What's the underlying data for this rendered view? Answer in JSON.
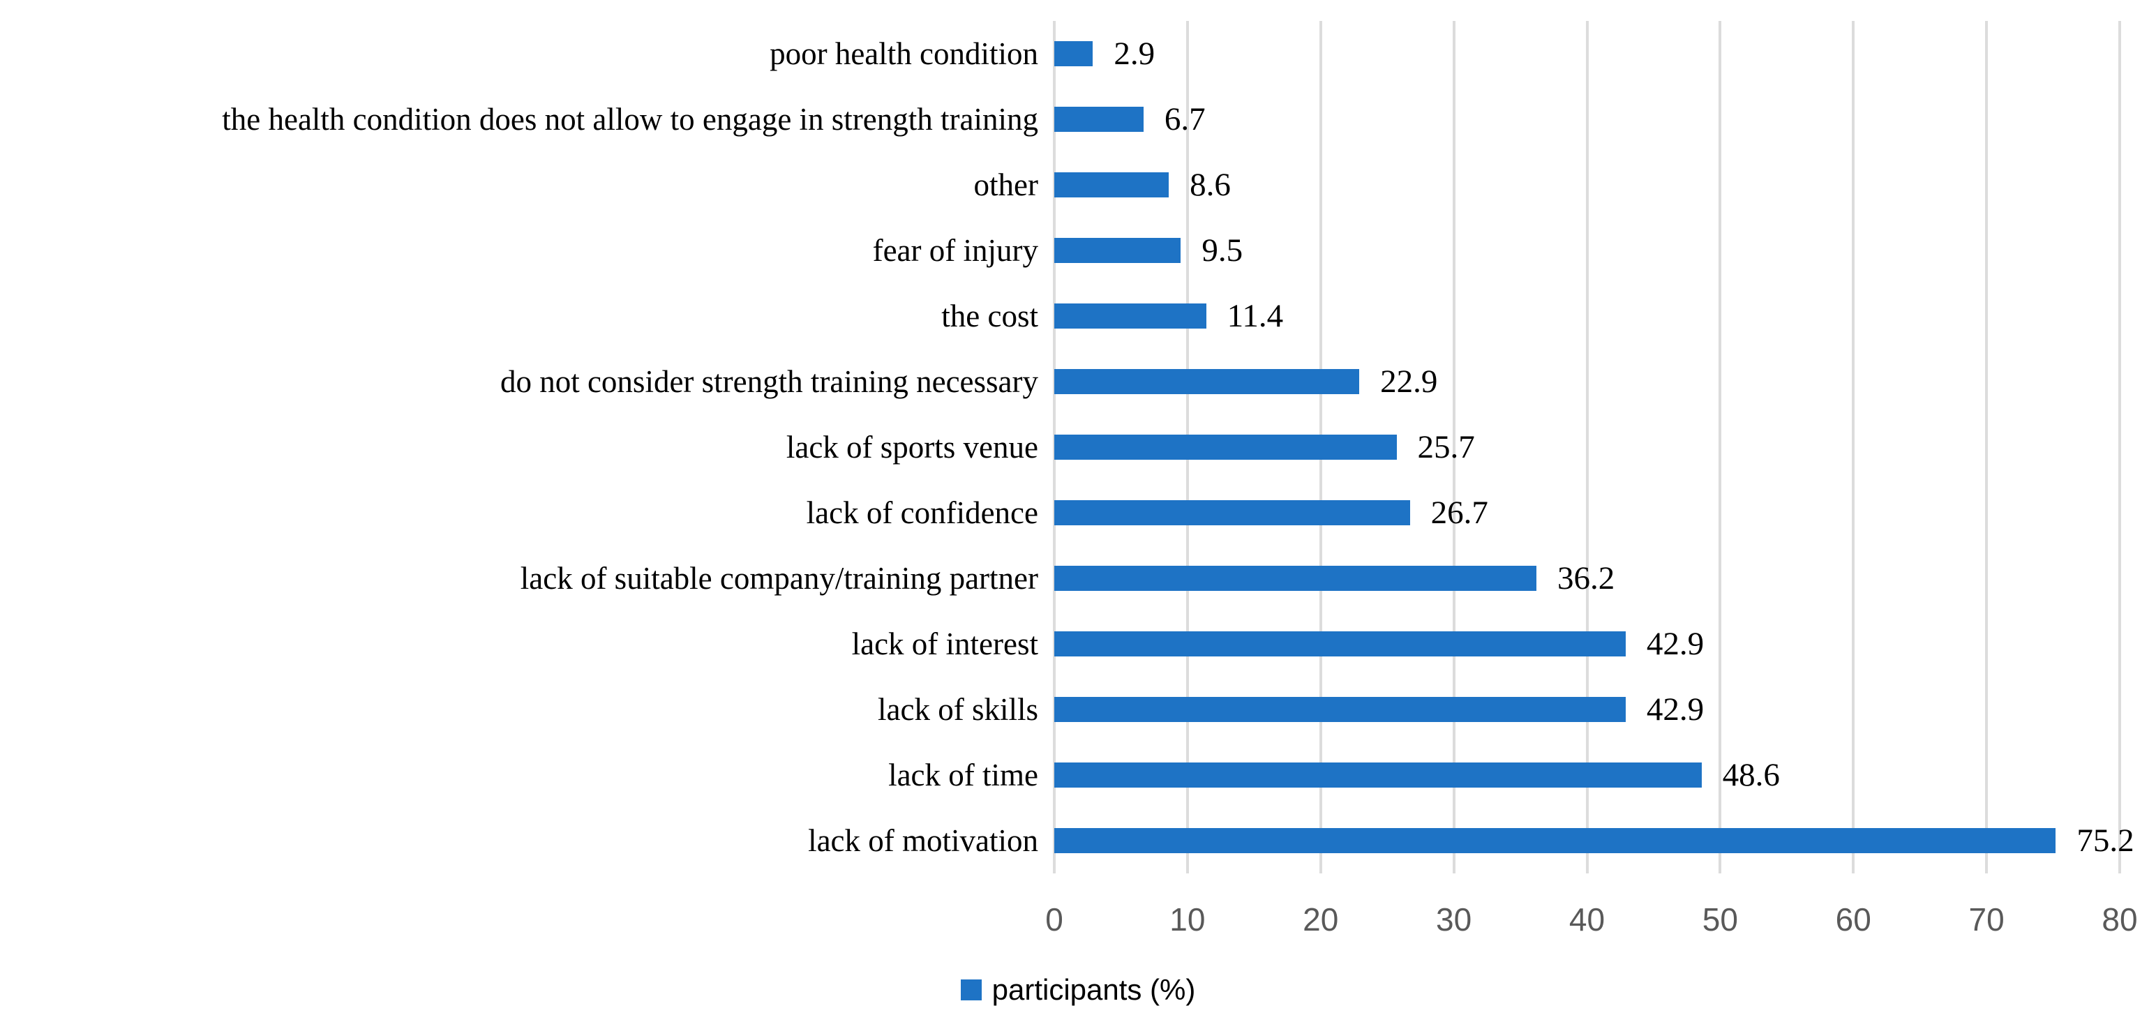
{
  "chart_data": {
    "type": "bar",
    "orientation": "horizontal",
    "title": "",
    "xlabel": "",
    "ylabel": "",
    "categories": [
      "poor health condition",
      "the health condition does not allow to engage in strength training",
      "other",
      "fear of injury",
      "the cost",
      "do not consider strength training necessary",
      "lack of sports venue",
      "lack of confidence",
      "lack of suitable company/training partner",
      "lack of interest",
      "lack of skills",
      "lack of time",
      "lack of motivation"
    ],
    "values": [
      2.9,
      6.7,
      8.6,
      9.5,
      11.4,
      22.9,
      25.7,
      26.7,
      36.2,
      42.9,
      42.9,
      48.6,
      75.2
    ],
    "data_labels": [
      "2.9",
      "6.7",
      "8.6",
      "9.5",
      "11.4",
      "22.9",
      "25.7",
      "26.7",
      "36.2",
      "42.9",
      "42.9",
      "48.6",
      "75.2"
    ],
    "x_ticks": [
      "0",
      "10",
      "20",
      "30",
      "40",
      "50",
      "60",
      "70",
      "80"
    ],
    "xlim": [
      0,
      80
    ],
    "grid": "vertical-only",
    "legend_position": "bottom-center",
    "series_name": "participants (%)"
  },
  "legend": {
    "label": "participants (%)"
  },
  "colors": {
    "bar": "#1E73C5",
    "gridline": "#DCDCDC",
    "tick_text": "#595959",
    "label_text": "#000000",
    "background": "#FFFFFF"
  }
}
